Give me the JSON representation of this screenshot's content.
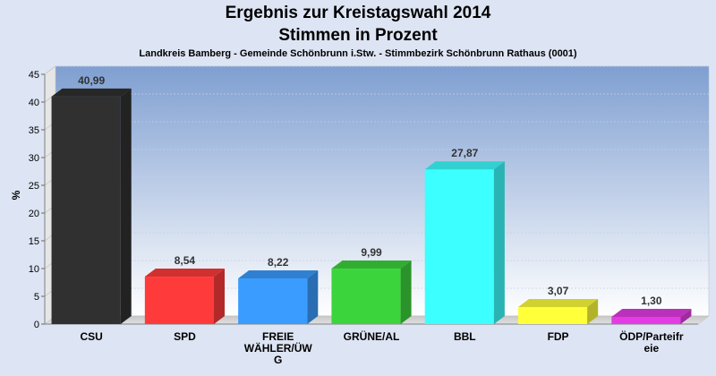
{
  "chart_data": {
    "type": "bar",
    "title": "Ergebnis zur Kreistagswahl 2014",
    "subtitle": "Stimmen in Prozent",
    "description": "Landkreis Bamberg - Gemeinde Schönbrunn i.Stw. - Stimmbezirk Schönbrunn Rathaus (0001)",
    "ylabel": "%",
    "xlabel": "",
    "ylim": [
      0,
      45
    ],
    "yticks": [
      0,
      5,
      10,
      15,
      20,
      25,
      30,
      35,
      40,
      45
    ],
    "grid": true,
    "categories": [
      "CSU",
      "SPD",
      "FREIE WÄHLER/ÜWG",
      "GRÜNE/AL",
      "BBL",
      "FDP",
      "ÖDP/Parteifreie"
    ],
    "category_lines": [
      [
        "CSU"
      ],
      [
        "SPD"
      ],
      [
        "FREIE",
        "WÄHLER/ÜW",
        "G"
      ],
      [
        "GRÜNE/AL"
      ],
      [
        "BBL"
      ],
      [
        "FDP"
      ],
      [
        "ÖDP/Parteifr",
        "eie"
      ]
    ],
    "values": [
      40.99,
      8.54,
      8.22,
      9.99,
      27.87,
      3.07,
      1.3
    ],
    "value_labels": [
      "40,99",
      "8,54",
      "8,22",
      "9,99",
      "27,87",
      "3,07",
      "1,30"
    ],
    "colors": [
      "#303030",
      "#ff3a3a",
      "#3a9cff",
      "#3cd43c",
      "#3cffff",
      "#ffff3a",
      "#e43ce4"
    ]
  }
}
